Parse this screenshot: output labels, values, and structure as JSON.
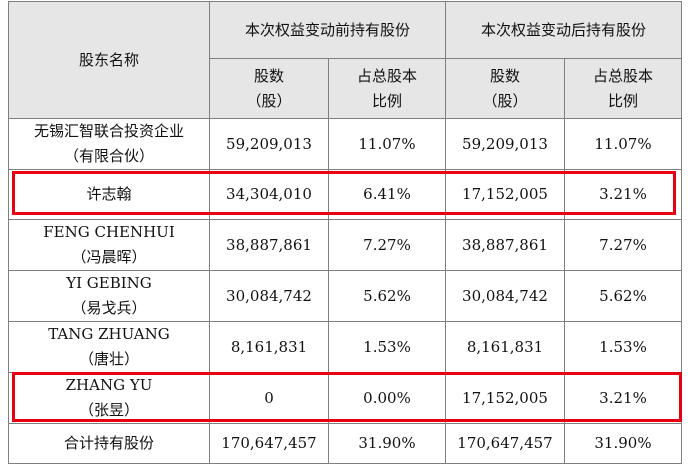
{
  "header": {
    "shareholder": "股东名称",
    "before_group": "本次权益变动前持有股份",
    "after_group": "本次权益变动后持有股份",
    "shares_line1": "股数",
    "shares_line2": "（股）",
    "ratio_line1": "占总股本",
    "ratio_line2": "比例"
  },
  "rows": [
    {
      "name1": "无锡汇智联合投资企业",
      "name2": "（有限合伙）",
      "before_shares": "59,209,013",
      "before_ratio": "11.07%",
      "after_shares": "59,209,013",
      "after_ratio": "11.07%",
      "highlighted": false
    },
    {
      "name1": "许志翰",
      "name2": "",
      "before_shares": "34,304,010",
      "before_ratio": "6.41%",
      "after_shares": "17,152,005",
      "after_ratio": "3.21%",
      "highlighted": true
    },
    {
      "name1": "FENG CHENHUI",
      "name2": "（冯晨晖）",
      "before_shares": "38,887,861",
      "before_ratio": "7.27%",
      "after_shares": "38,887,861",
      "after_ratio": "7.27%",
      "highlighted": false
    },
    {
      "name1": "YI GEBING",
      "name2": "（易戈兵）",
      "before_shares": "30,084,742",
      "before_ratio": "5.62%",
      "after_shares": "30,084,742",
      "after_ratio": "5.62%",
      "highlighted": false
    },
    {
      "name1": "TANG ZHUANG",
      "name2": "（唐壮）",
      "before_shares": "8,161,831",
      "before_ratio": "1.53%",
      "after_shares": "8,161,831",
      "after_ratio": "1.53%",
      "highlighted": false
    },
    {
      "name1": "ZHANG YU",
      "name2": "（张昱）",
      "before_shares": "0",
      "before_ratio": "0.00%",
      "after_shares": "17,152,005",
      "after_ratio": "3.21%",
      "highlighted": true
    }
  ],
  "total": {
    "label": "合计持有股份",
    "before_shares": "170,647,457",
    "before_ratio": "31.90%",
    "after_shares": "170,647,457",
    "after_ratio": "31.90%"
  },
  "colors": {
    "highlight_border": "#e60012",
    "header_background": "#e6e6e6",
    "grid": "#7f7f7f"
  }
}
